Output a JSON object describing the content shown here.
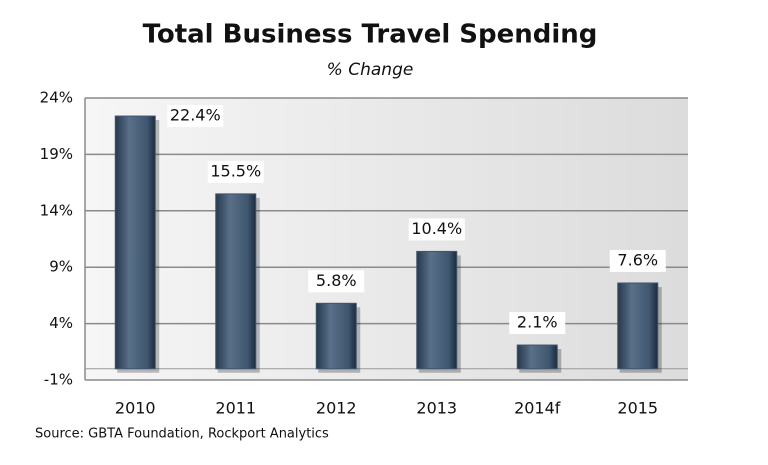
{
  "chart_data": {
    "type": "bar",
    "title": "Total Business Travel Spending",
    "subtitle": "% Change",
    "categories": [
      "2010",
      "2011",
      "2012",
      "2013",
      "2014f",
      "2015"
    ],
    "values": [
      22.4,
      15.5,
      5.8,
      10.4,
      2.1,
      7.6
    ],
    "value_labels": [
      "22.4%",
      "15.5%",
      "5.8%",
      "10.4%",
      "2.1%",
      "7.6%"
    ],
    "color": "#3f5670",
    "ylim": [
      -1,
      24
    ],
    "yticks": [
      {
        "value": -1,
        "label": "-1%"
      },
      {
        "value": 4,
        "label": "4%"
      },
      {
        "value": 9,
        "label": "9%"
      },
      {
        "value": 14,
        "label": "14%"
      },
      {
        "value": 19,
        "label": "19%"
      },
      {
        "value": 24,
        "label": "24%"
      }
    ],
    "grid": true,
    "source": "Source: GBTA Foundation, Rockport Analytics"
  }
}
